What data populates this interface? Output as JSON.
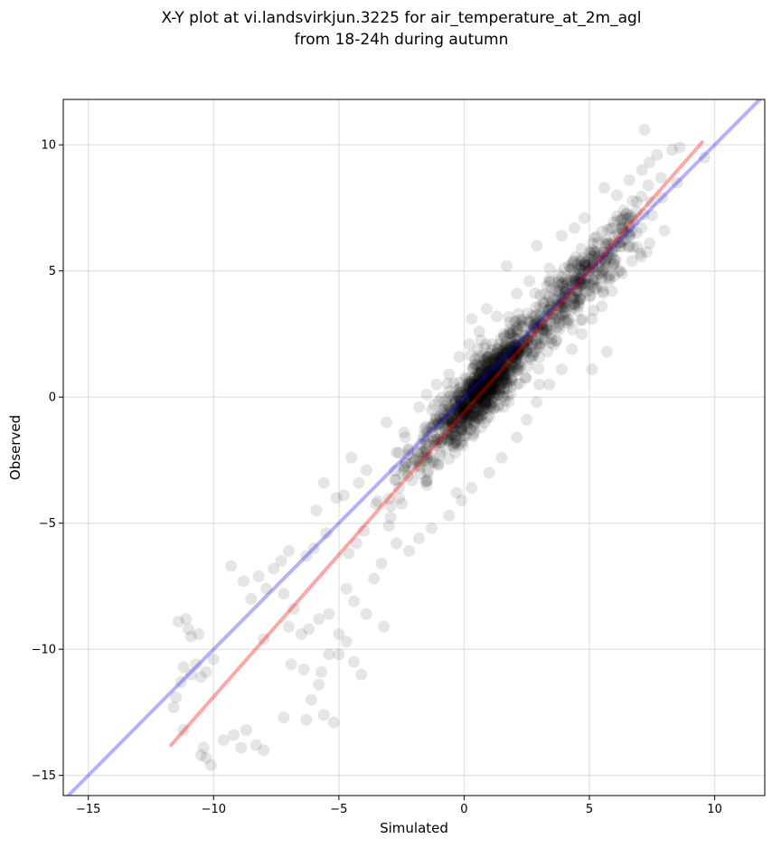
{
  "chart_data": {
    "type": "scatter",
    "title_line1": "X-Y plot at vi.landsvirkjun.3225 for air_temperature_at_2m_agl",
    "title_line2": "from 18-24h during autumn",
    "xlabel": "Simulated",
    "ylabel": "Observed",
    "xlim": [
      -16,
      12
    ],
    "ylim": [
      -15.8,
      11.8
    ],
    "xticks": [
      -15,
      -10,
      -5,
      0,
      5,
      10
    ],
    "yticks": [
      -15,
      -10,
      -5,
      0,
      5,
      10
    ],
    "xtick_labels": [
      "−15",
      "−10",
      "−5",
      "0",
      "5",
      "10"
    ],
    "ytick_labels": [
      "−15",
      "−10",
      "−5",
      "0",
      "5",
      "10"
    ],
    "grid": true,
    "point_color": "#000000",
    "point_alpha": 0.1,
    "identity_line": {
      "color": "#0000ff",
      "alpha": 0.3,
      "x": [
        -16,
        12
      ],
      "y": [
        -16,
        12
      ]
    },
    "fit_line": {
      "color": "#ff0000",
      "alpha": 0.35,
      "x": [
        -11.7,
        9.5
      ],
      "y": [
        -13.8,
        10.1
      ]
    },
    "points_explicit": [
      [
        -11.6,
        -12.3
      ],
      [
        -11.5,
        -11.9
      ],
      [
        -11.3,
        -11.3
      ],
      [
        -11.2,
        -10.7
      ],
      [
        -11.4,
        -8.9
      ],
      [
        -11.1,
        -8.8
      ],
      [
        -11.0,
        -9.2
      ],
      [
        -10.9,
        -9.5
      ],
      [
        -10.6,
        -9.4
      ],
      [
        -10.9,
        -11.0
      ],
      [
        -10.7,
        -10.6
      ],
      [
        -10.3,
        -10.9
      ],
      [
        -10.5,
        -11.1
      ],
      [
        -10.0,
        -10.4
      ],
      [
        -11.2,
        -13.2
      ],
      [
        -10.4,
        -13.9
      ],
      [
        -10.3,
        -14.3
      ],
      [
        -10.1,
        -14.6
      ],
      [
        -10.5,
        -14.2
      ],
      [
        -9.6,
        -13.6
      ],
      [
        -9.2,
        -13.4
      ],
      [
        -8.9,
        -13.9
      ],
      [
        -8.7,
        -13.2
      ],
      [
        -8.0,
        -14.0
      ],
      [
        -8.3,
        -13.8
      ],
      [
        -9.3,
        -6.7
      ],
      [
        -8.8,
        -7.3
      ],
      [
        -8.2,
        -7.1
      ],
      [
        -8.5,
        -8.0
      ],
      [
        -8.0,
        -9.6
      ],
      [
        -7.6,
        -6.8
      ],
      [
        -7.9,
        -7.6
      ],
      [
        -7.3,
        -6.5
      ],
      [
        -7.0,
        -6.1
      ],
      [
        -7.2,
        -7.8
      ],
      [
        -6.8,
        -8.4
      ],
      [
        -7.0,
        -9.1
      ],
      [
        -6.5,
        -9.4
      ],
      [
        -6.9,
        -10.6
      ],
      [
        -6.4,
        -10.8
      ],
      [
        -6.1,
        -12.0
      ],
      [
        -6.3,
        -12.8
      ],
      [
        -7.2,
        -12.7
      ],
      [
        -5.6,
        -12.6
      ],
      [
        -5.2,
        -12.9
      ],
      [
        -5.8,
        -11.4
      ],
      [
        -5.4,
        -10.2
      ],
      [
        -5.0,
        -9.4
      ],
      [
        -4.7,
        -9.7
      ],
      [
        -4.4,
        -10.5
      ],
      [
        -4.1,
        -11.0
      ],
      [
        -4.4,
        -8.1
      ],
      [
        -3.9,
        -8.6
      ],
      [
        -3.2,
        -9.1
      ],
      [
        -5.6,
        -3.4
      ],
      [
        -5.1,
        -4.0
      ],
      [
        -4.8,
        -3.9
      ],
      [
        -5.9,
        -4.5
      ],
      [
        -5.5,
        -5.4
      ],
      [
        -6.3,
        -6.3
      ],
      [
        -6.0,
        -6.0
      ],
      [
        -4.6,
        -6.2
      ],
      [
        -4.3,
        -5.8
      ],
      [
        -4.0,
        -5.3
      ],
      [
        -3.3,
        -6.6
      ],
      [
        -3.6,
        -7.2
      ],
      [
        -4.7,
        -7.6
      ],
      [
        -5.4,
        -8.6
      ],
      [
        -5.8,
        -8.8
      ],
      [
        -6.2,
        -9.2
      ],
      [
        -5.7,
        -10.9
      ],
      [
        -5.0,
        -10.2
      ],
      [
        -4.5,
        -2.4
      ],
      [
        -4.2,
        -3.4
      ],
      [
        -3.9,
        -2.9
      ],
      [
        -3.1,
        -1.0
      ],
      [
        -2.7,
        -2.2
      ],
      [
        -2.4,
        -1.4
      ],
      [
        -1.8,
        -0.4
      ],
      [
        -1.5,
        0.1
      ],
      [
        -1.1,
        0.5
      ],
      [
        -0.6,
        0.9
      ],
      [
        -0.2,
        1.6
      ],
      [
        0.2,
        2.1
      ],
      [
        0.3,
        3.1
      ],
      [
        0.6,
        2.6
      ],
      [
        0.9,
        3.5
      ],
      [
        1.3,
        3.2
      ],
      [
        1.7,
        5.2
      ],
      [
        2.1,
        4.1
      ],
      [
        2.6,
        4.6
      ],
      [
        2.9,
        6.0
      ],
      [
        3.4,
        5.1
      ],
      [
        3.9,
        6.4
      ],
      [
        4.4,
        6.7
      ],
      [
        4.8,
        7.1
      ],
      [
        5.2,
        6.3
      ],
      [
        5.6,
        8.3
      ],
      [
        6.1,
        8.0
      ],
      [
        6.6,
        8.6
      ],
      [
        7.1,
        9.0
      ],
      [
        7.4,
        9.3
      ],
      [
        7.2,
        10.6
      ],
      [
        7.7,
        9.6
      ],
      [
        8.3,
        9.8
      ],
      [
        8.6,
        9.9
      ],
      [
        9.6,
        9.5
      ],
      [
        8.5,
        8.5
      ],
      [
        7.9,
        7.9
      ],
      [
        7.5,
        7.2
      ],
      [
        8.0,
        6.6
      ],
      [
        7.4,
        6.1
      ],
      [
        6.7,
        5.4
      ],
      [
        6.3,
        4.9
      ],
      [
        5.9,
        4.2
      ],
      [
        5.5,
        3.6
      ],
      [
        5.1,
        3.1
      ],
      [
        4.7,
        2.5
      ],
      [
        4.3,
        1.9
      ],
      [
        3.9,
        1.1
      ],
      [
        3.4,
        0.5
      ],
      [
        2.9,
        -0.2
      ],
      [
        2.5,
        -0.9
      ],
      [
        2.1,
        -1.6
      ],
      [
        1.5,
        -2.4
      ],
      [
        1.0,
        -3.0
      ],
      [
        0.3,
        -3.6
      ],
      [
        -0.1,
        -4.1
      ],
      [
        -0.6,
        -4.7
      ],
      [
        -1.3,
        -5.2
      ],
      [
        -1.8,
        -5.6
      ],
      [
        -2.2,
        -6.1
      ],
      [
        -2.7,
        -5.8
      ],
      [
        -3.0,
        -5.1
      ],
      [
        5.1,
        1.1
      ],
      [
        5.7,
        1.8
      ],
      [
        3.0,
        0.5
      ],
      [
        -0.3,
        -3.8
      ]
    ],
    "dense_cloud": {
      "count": 1350,
      "x_range": [
        -4.5,
        8.2
      ],
      "slope": 1.08,
      "intercept": -0.45,
      "scatter_sd": 0.85
    }
  }
}
